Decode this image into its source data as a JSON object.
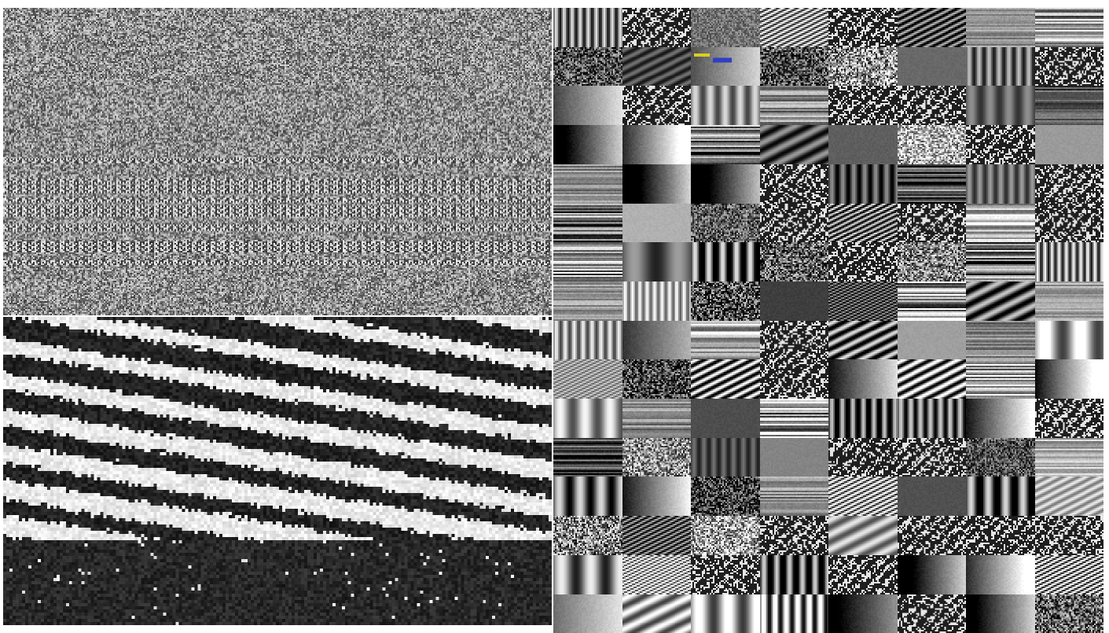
{
  "screen": {
    "description_label": "",
    "background_color": "#ffffff",
    "ink_dark": "#111111",
    "ink_light": "#f0f0f0",
    "accent_yellow": "#d8d020",
    "accent_blue": "#3040c0"
  },
  "panels": [
    {
      "name": "fine-noise-panel",
      "pattern": "noise"
    },
    {
      "name": "diagonal-stripe-panel",
      "pattern": "stripes"
    }
  ],
  "tile_grid": {
    "columns": 8,
    "rows": 16,
    "pattern_kinds": [
      "noise",
      "hlines",
      "vbars",
      "blocks",
      "diag",
      "flat",
      "gradient"
    ]
  }
}
